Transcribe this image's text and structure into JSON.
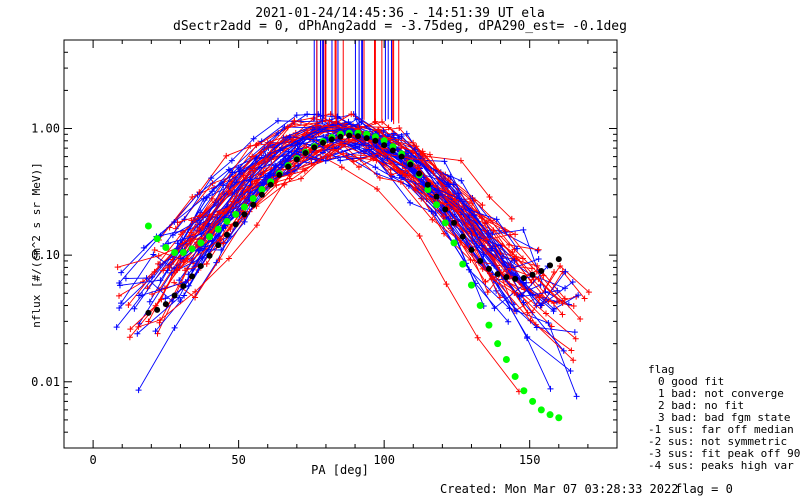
{
  "chart_data": {
    "type": "line",
    "title_line1": "2021-01-24/14:45:36 - 14:51:39 UT ela",
    "title_line2": "dSectr2add = 0, dPhAng2add = -3.75deg, dPA290_est=  -0.1deg",
    "xlabel": "PA [deg]",
    "ylabel": "nflux [#/(cm^2 s sr MeV)]",
    "xlim": [
      -10,
      180
    ],
    "ylim": [
      0.003,
      5
    ],
    "yscale": "log",
    "xticks": [
      0,
      50,
      100,
      150
    ],
    "yticks": [
      {
        "value": 0.01,
        "label": "0.01"
      },
      {
        "value": 0.1,
        "label": "0.10"
      },
      {
        "value": 1,
        "label": "1.00"
      }
    ],
    "colors": {
      "red": "#ff0000",
      "blue": "#0000ff",
      "green": "#00ff00",
      "black": "#000000"
    },
    "series": [
      {
        "color": "green",
        "values": [
          [
            19,
            0.17
          ],
          [
            22,
            0.135
          ],
          [
            25,
            0.115
          ],
          [
            28,
            0.105
          ],
          [
            31,
            0.105
          ],
          [
            34,
            0.112
          ],
          [
            37,
            0.125
          ],
          [
            40,
            0.14
          ],
          [
            43,
            0.16
          ],
          [
            46,
            0.185
          ],
          [
            49,
            0.21
          ],
          [
            52,
            0.24
          ],
          [
            55,
            0.28
          ],
          [
            58,
            0.33
          ],
          [
            61,
            0.38
          ],
          [
            64,
            0.44
          ],
          [
            67,
            0.51
          ],
          [
            70,
            0.58
          ],
          [
            73,
            0.65
          ],
          [
            76,
            0.72
          ],
          [
            79,
            0.79
          ],
          [
            82,
            0.85
          ],
          [
            85,
            0.9
          ],
          [
            88,
            0.92
          ],
          [
            91,
            0.92
          ],
          [
            94,
            0.9
          ],
          [
            97,
            0.86
          ],
          [
            100,
            0.8
          ],
          [
            103,
            0.72
          ],
          [
            106,
            0.63
          ],
          [
            109,
            0.53
          ],
          [
            112,
            0.43
          ],
          [
            115,
            0.33
          ],
          [
            118,
            0.25
          ],
          [
            121,
            0.18
          ],
          [
            124,
            0.125
          ],
          [
            127,
            0.085
          ],
          [
            130,
            0.058
          ],
          [
            133,
            0.04
          ],
          [
            136,
            0.028
          ],
          [
            139,
            0.02
          ],
          [
            142,
            0.015
          ],
          [
            145,
            0.011
          ],
          [
            148,
            0.0085
          ],
          [
            151,
            0.007
          ],
          [
            154,
            0.006
          ],
          [
            157,
            0.0055
          ],
          [
            160,
            0.0052
          ]
        ]
      },
      {
        "color": "black",
        "values": [
          [
            19,
            0.035
          ],
          [
            22,
            0.037
          ],
          [
            25,
            0.041
          ],
          [
            28,
            0.048
          ],
          [
            31,
            0.057
          ],
          [
            34,
            0.068
          ],
          [
            37,
            0.082
          ],
          [
            40,
            0.099
          ],
          [
            43,
            0.12
          ],
          [
            46,
            0.145
          ],
          [
            49,
            0.175
          ],
          [
            52,
            0.21
          ],
          [
            55,
            0.25
          ],
          [
            58,
            0.3
          ],
          [
            61,
            0.36
          ],
          [
            64,
            0.43
          ],
          [
            67,
            0.5
          ],
          [
            70,
            0.57
          ],
          [
            73,
            0.64
          ],
          [
            76,
            0.71
          ],
          [
            79,
            0.77
          ],
          [
            82,
            0.82
          ],
          [
            85,
            0.86
          ],
          [
            88,
            0.88
          ],
          [
            91,
            0.87
          ],
          [
            94,
            0.84
          ],
          [
            97,
            0.8
          ],
          [
            100,
            0.74
          ],
          [
            103,
            0.67
          ],
          [
            106,
            0.6
          ],
          [
            109,
            0.52
          ],
          [
            112,
            0.44
          ],
          [
            115,
            0.36
          ],
          [
            118,
            0.29
          ],
          [
            121,
            0.23
          ],
          [
            124,
            0.18
          ],
          [
            127,
            0.14
          ],
          [
            130,
            0.11
          ],
          [
            133,
            0.09
          ],
          [
            136,
            0.078
          ],
          [
            139,
            0.071
          ],
          [
            142,
            0.067
          ],
          [
            145,
            0.065
          ],
          [
            148,
            0.066
          ],
          [
            151,
            0.07
          ],
          [
            154,
            0.075
          ],
          [
            157,
            0.083
          ],
          [
            160,
            0.093
          ]
        ]
      }
    ],
    "legend": {
      "title": "flag",
      "entries": [
        "0 good fit",
        "1 bad: not converge",
        "2 bad: no fit",
        "3 bad: bad fgm state",
        "-1 sus: far off median",
        "-2 sus: not symmetric",
        "-3 sus: fit peak off 90",
        "-4 sus: peaks high var"
      ]
    },
    "footer_created": "Created: Mon Mar 07 03:28:33 2022",
    "footer_flag": "flag = 0"
  }
}
